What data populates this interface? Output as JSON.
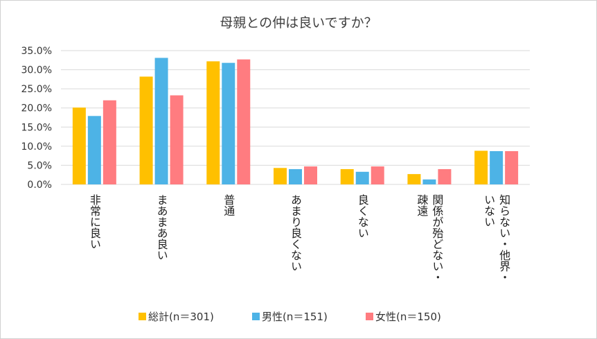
{
  "chart_data": {
    "type": "bar",
    "title": "母親との仲は良いですか？",
    "categories": [
      "非常に良い",
      "まあまあ良い",
      "普通",
      "あまり良くない",
      "良くない",
      "関係が殆どない・疎遠",
      "知らない・他界・いない"
    ],
    "category_lines": [
      [
        "非常に良い"
      ],
      [
        "まあまあ良い"
      ],
      [
        "普通"
      ],
      [
        "あまり良くない"
      ],
      [
        "良くない"
      ],
      [
        "関係が殆どない・",
        "疎遠"
      ],
      [
        "知らない・他界・",
        "いない"
      ]
    ],
    "series": [
      {
        "name": "総計(n＝301)",
        "color": "#ffc000",
        "values": [
          20.1,
          28.2,
          32.2,
          4.3,
          4.0,
          2.7,
          8.8
        ]
      },
      {
        "name": "男性(n＝151)",
        "color": "#4db3e6",
        "values": [
          17.9,
          33.1,
          31.8,
          4.0,
          3.3,
          1.3,
          8.7
        ]
      },
      {
        "name": "女性(n＝150)",
        "color": "#ff7c80",
        "values": [
          22.0,
          23.3,
          32.7,
          4.7,
          4.7,
          4.0,
          8.7
        ]
      }
    ],
    "yticks": [
      "0.0%",
      "5.0%",
      "10.0%",
      "15.0%",
      "20.0%",
      "25.0%",
      "30.0%",
      "35.0%"
    ],
    "ylim": [
      0,
      35
    ],
    "legend_position": "bottom",
    "grid": true
  }
}
